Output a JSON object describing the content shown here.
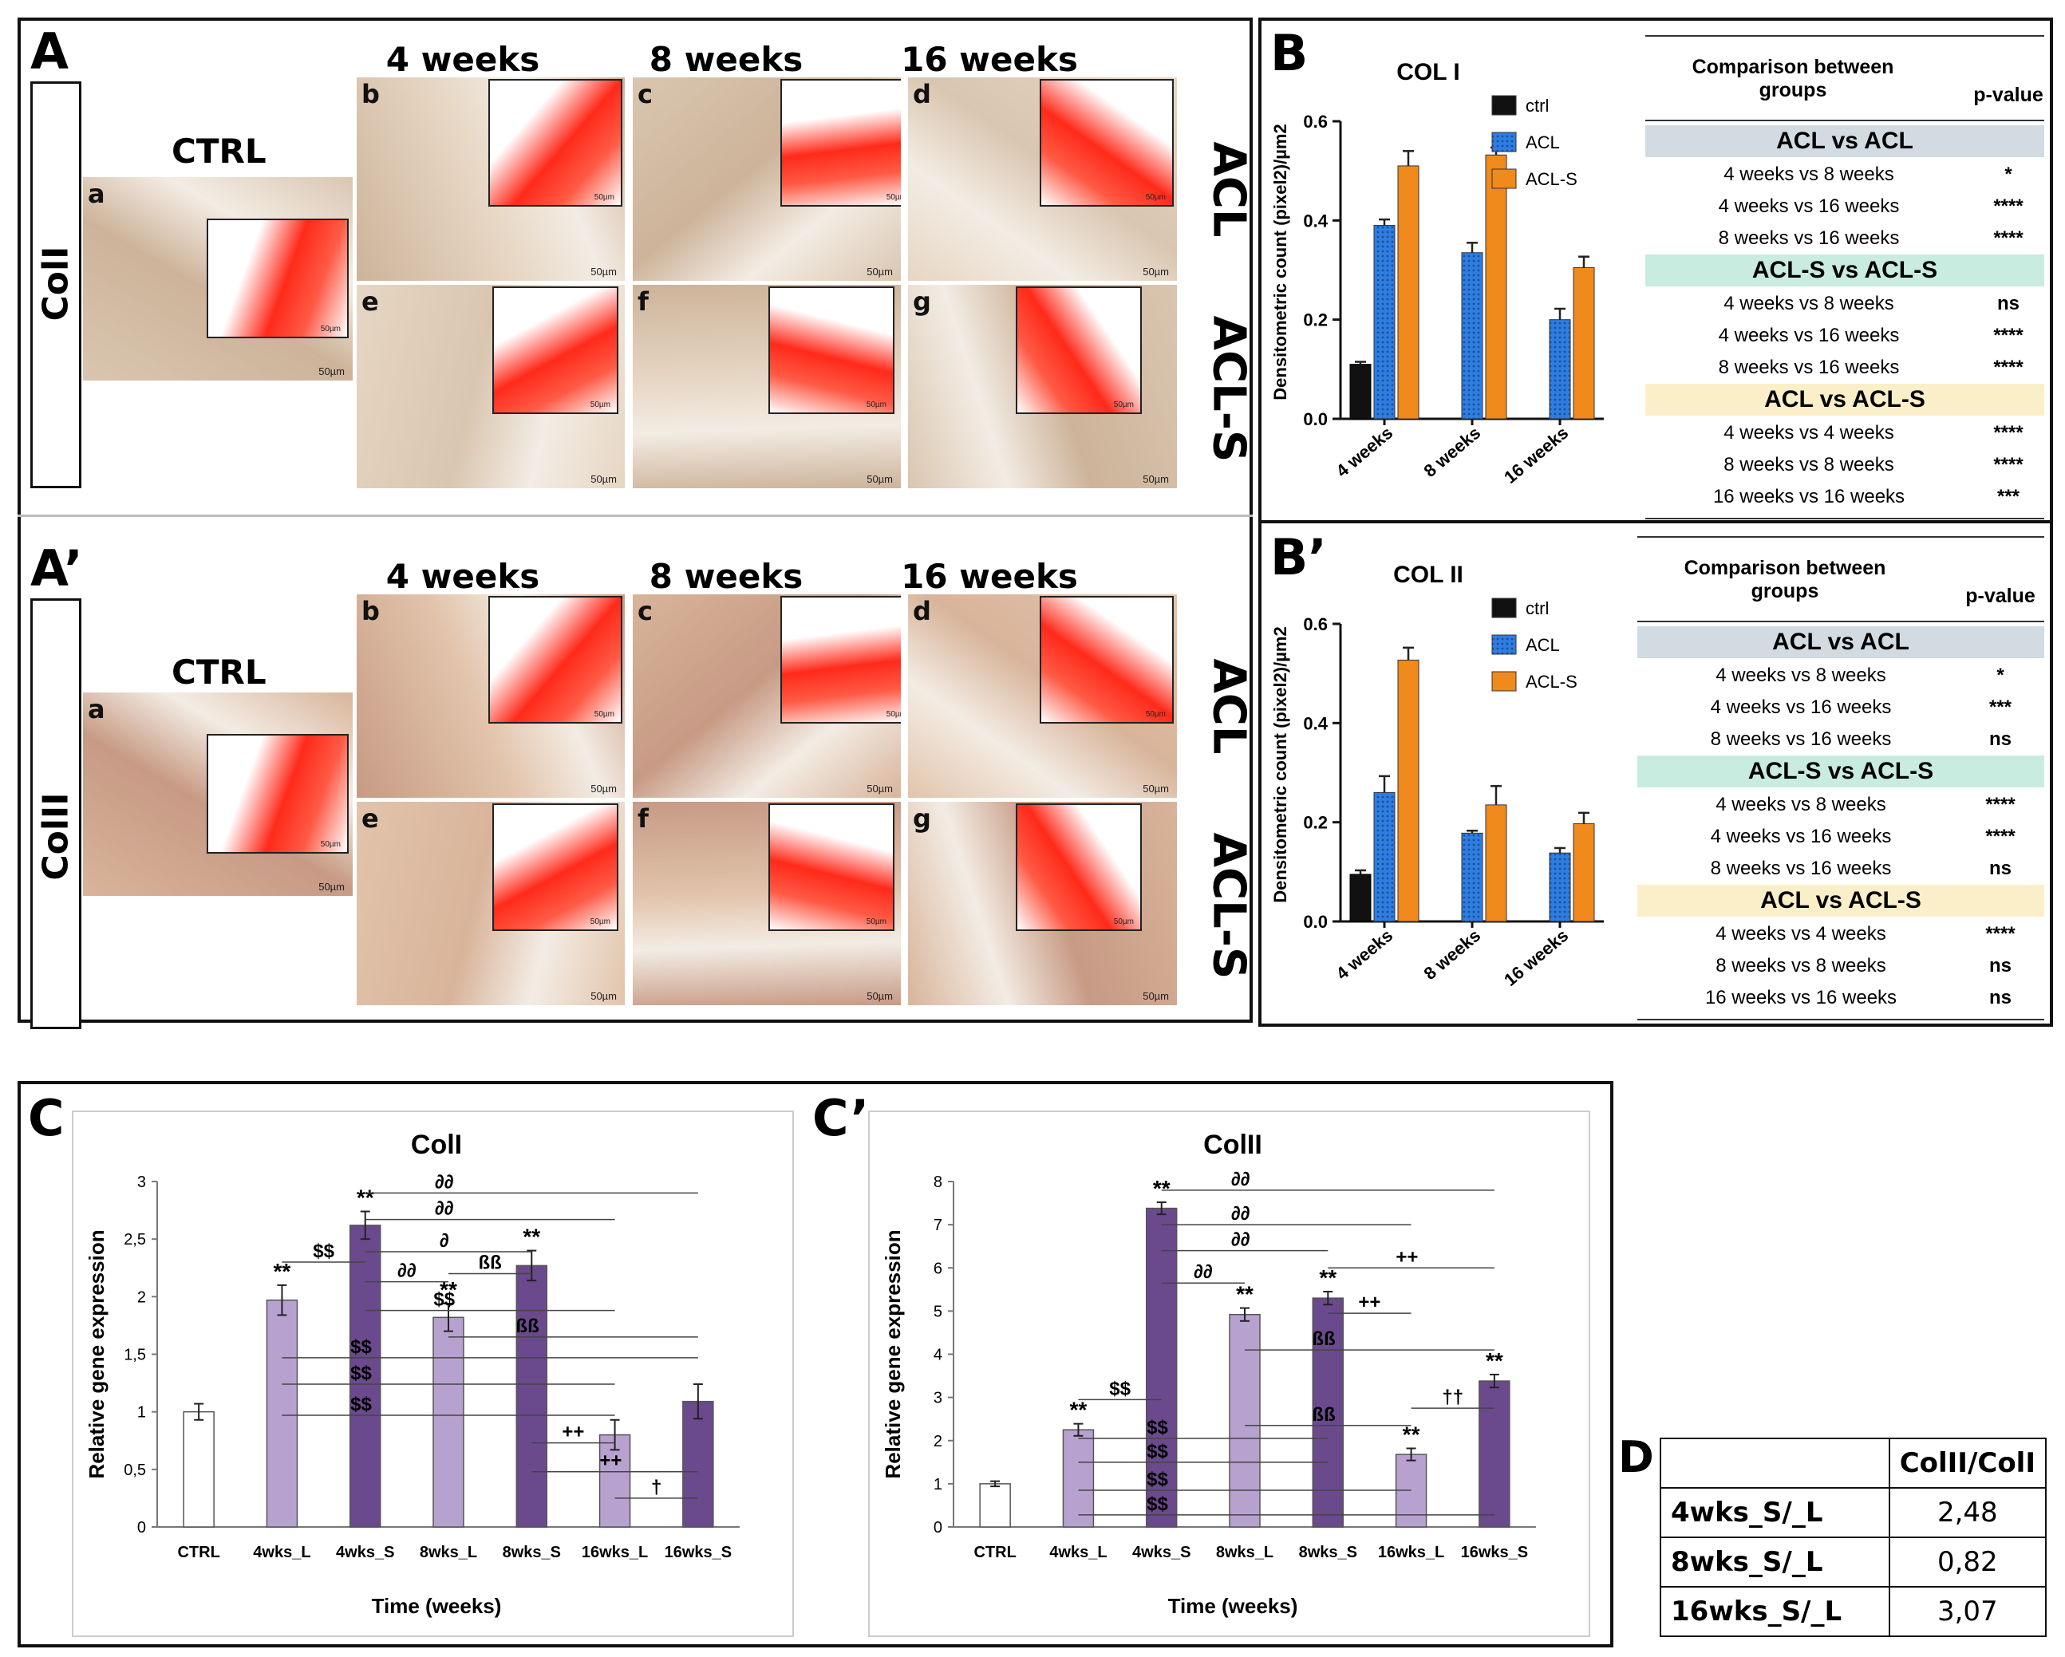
{
  "panelA": {
    "letter": "A",
    "row_label": "ColI",
    "ctrl_label": "CTRL",
    "weeks": [
      "4 weeks",
      "8 weeks",
      "16 weeks"
    ],
    "right_labels": [
      "ACL",
      "ACL-S"
    ],
    "image_letters": [
      "a",
      "b",
      "c",
      "d",
      "e",
      "f",
      "g"
    ],
    "scale_bar": "50µm"
  },
  "panelA2": {
    "letter": "A’",
    "row_label": "ColII",
    "ctrl_label": "CTRL",
    "weeks": [
      "4 weeks",
      "8 weeks",
      "16 weeks"
    ],
    "right_labels": [
      "ACL",
      "ACL-S"
    ],
    "image_letters": [
      "a",
      "b",
      "c",
      "d",
      "e",
      "f",
      "g"
    ],
    "scale_bar": "50µm"
  },
  "panelB": {
    "letter": "B",
    "table": {
      "header_comparison": "Comparison between groups",
      "header_pvalue": "p-value",
      "groups": [
        {
          "title": "ACL vs ACL",
          "color": "#d2dbe2",
          "rows": [
            [
              "4 weeks vs 8 weeks",
              "*"
            ],
            [
              "4 weeks vs 16 weeks",
              "****"
            ],
            [
              "8 weeks vs 16 weeks",
              "****"
            ]
          ]
        },
        {
          "title": "ACL-S vs ACL-S",
          "color": "#c8ecdf",
          "rows": [
            [
              "4 weeks vs 8 weeks",
              "ns"
            ],
            [
              "4 weeks vs 16 weeks",
              "****"
            ],
            [
              "8 weeks vs 16 weeks",
              "****"
            ]
          ]
        },
        {
          "title": "ACL vs ACL-S",
          "color": "#fbefc9",
          "rows": [
            [
              "4 weeks vs 4 weeks",
              "****"
            ],
            [
              "8 weeks vs 8 weeks",
              "****"
            ],
            [
              "16 weeks vs 16 weeks",
              "***"
            ]
          ]
        }
      ]
    }
  },
  "panelB2": {
    "letter": "B’",
    "table": {
      "header_comparison": "Comparison between groups",
      "header_pvalue": "p-value",
      "groups": [
        {
          "title": "ACL vs ACL",
          "color": "#d2dbe2",
          "rows": [
            [
              "4 weeks vs 8 weeks",
              "*"
            ],
            [
              "4 weeks vs 16 weeks",
              "***"
            ],
            [
              "8 weeks vs 16 weeks",
              "ns"
            ]
          ]
        },
        {
          "title": "ACL-S vs ACL-S",
          "color": "#c8ecdf",
          "rows": [
            [
              "4 weeks vs 8 weeks",
              "****"
            ],
            [
              "4 weeks vs 16 weeks",
              "****"
            ],
            [
              "8 weeks vs 16 weeks",
              "ns"
            ]
          ]
        },
        {
          "title": "ACL vs ACL-S",
          "color": "#fbefc9",
          "rows": [
            [
              "4 weeks vs 4 weeks",
              "****"
            ],
            [
              "8 weeks vs 8 weeks",
              "ns"
            ],
            [
              "16 weeks vs 16 weeks",
              "ns"
            ]
          ]
        }
      ]
    }
  },
  "panelC": {
    "letter": "C"
  },
  "panelC2": {
    "letter": "C’"
  },
  "panelD": {
    "letter": "D",
    "header": "ColII/ColI",
    "rows": [
      [
        "4wks_S/_L",
        "2,48"
      ],
      [
        "8wks_S/_L",
        "0,82"
      ],
      [
        "16wks_S/_L",
        "3,07"
      ]
    ]
  },
  "chart_data": [
    {
      "id": "B",
      "type": "bar",
      "title": "COL I",
      "ylabel": "Densitometric count (pixel2)/µm2",
      "categories": [
        "4 weeks",
        "8 weeks",
        "16 weeks"
      ],
      "ylim": [
        0,
        0.6
      ],
      "yticks": [
        "0.0",
        "0.2",
        "0.4",
        "0.6"
      ],
      "legend": [
        "ctrl",
        "ACL",
        "ACL-S"
      ],
      "colors": [
        "#111111",
        "#2e7de0",
        "#f08a1c"
      ],
      "series": [
        {
          "name": "ctrl",
          "values": [
            0.11,
            null,
            null
          ],
          "errors": [
            0.005,
            0,
            0
          ]
        },
        {
          "name": "ACL",
          "values": [
            0.39,
            0.335,
            0.2
          ],
          "errors": [
            0.012,
            0.02,
            0.022
          ]
        },
        {
          "name": "ACL-S",
          "values": [
            0.51,
            0.532,
            0.305
          ],
          "errors": [
            0.03,
            0.015,
            0.022
          ]
        }
      ]
    },
    {
      "id": "B2",
      "type": "bar",
      "title": "COL II",
      "ylabel": "Densitometric count (pixel2)/µm2",
      "categories": [
        "4 weeks",
        "8 weeks",
        "16 weeks"
      ],
      "ylim": [
        0,
        0.6
      ],
      "yticks": [
        "0.0",
        "0.2",
        "0.4",
        "0.6"
      ],
      "legend": [
        "ctrl",
        "ACL",
        "ACL-S"
      ],
      "colors": [
        "#111111",
        "#2e7de0",
        "#f08a1c"
      ],
      "series": [
        {
          "name": "ctrl",
          "values": [
            0.095,
            null,
            null
          ],
          "errors": [
            0.008,
            0,
            0
          ]
        },
        {
          "name": "ACL",
          "values": [
            0.26,
            0.178,
            0.138
          ],
          "errors": [
            0.033,
            0.005,
            0.01
          ]
        },
        {
          "name": "ACL-S",
          "values": [
            0.527,
            0.235,
            0.197
          ],
          "errors": [
            0.025,
            0.038,
            0.022
          ]
        }
      ]
    },
    {
      "id": "C",
      "type": "bar",
      "title": "ColI",
      "xlabel": "Time (weeks)",
      "ylabel": "Relative gene expression",
      "categories": [
        "CTRL",
        "4wks_L",
        "4wks_S",
        "8wks_L",
        "8wks_S",
        "16wks_L",
        "16wks_S"
      ],
      "ylim": [
        0,
        3
      ],
      "yticks": [
        "0",
        "0,5",
        "1",
        "1,5",
        "2",
        "2,5",
        "3"
      ],
      "values": [
        1.0,
        1.97,
        2.62,
        1.82,
        2.27,
        0.8,
        1.09
      ],
      "errors": [
        0.07,
        0.13,
        0.12,
        0.12,
        0.13,
        0.13,
        0.15
      ],
      "colors": [
        "#ffffff",
        "#b7a2cf",
        "#6a4a8c",
        "#b7a2cf",
        "#6a4a8c",
        "#b7a2cf",
        "#6a4a8c"
      ],
      "stars": [
        "",
        "**",
        "**",
        "**",
        "**",
        "",
        ""
      ],
      "annotations": [
        {
          "label": "∂∂",
          "from": 2,
          "to": 6,
          "y": 2.9
        },
        {
          "label": "∂∂",
          "from": 2,
          "to": 5,
          "y": 2.67
        },
        {
          "label": "$$",
          "from": 1,
          "to": 2,
          "y": 2.3
        },
        {
          "label": "∂",
          "from": 2,
          "to": 4,
          "y": 2.39
        },
        {
          "label": "ßß",
          "from": 3,
          "to": 4,
          "y": 2.2
        },
        {
          "label": "∂∂",
          "from": 2,
          "to": 3,
          "y": 2.13
        },
        {
          "label": "$$",
          "from": 2,
          "to": 5,
          "y": 1.88
        },
        {
          "label": "ßß",
          "from": 3,
          "to": 6,
          "y": 1.65
        },
        {
          "label": "$$",
          "from": 1,
          "to": 6,
          "y": 1.47
        },
        {
          "label": "$$",
          "from": 1,
          "to": 5,
          "y": 1.24
        },
        {
          "label": "$$",
          "from": 1,
          "to": 5,
          "y": 0.97
        },
        {
          "label": "++",
          "from": 4,
          "to": 5,
          "y": 0.73
        },
        {
          "label": "++",
          "from": 4,
          "to": 6,
          "y": 0.48
        },
        {
          "label": "†",
          "from": 5,
          "to": 6,
          "y": 0.25
        }
      ]
    },
    {
      "id": "C2",
      "type": "bar",
      "title": "ColII",
      "xlabel": "Time (weeks)",
      "ylabel": "Relative gene expression",
      "categories": [
        "CTRL",
        "4wks_L",
        "4wks_S",
        "8wks_L",
        "8wks_S",
        "16wks_L",
        "16wks_S"
      ],
      "ylim": [
        0,
        8
      ],
      "yticks": [
        "0",
        "1",
        "2",
        "3",
        "4",
        "5",
        "6",
        "7",
        "8"
      ],
      "values": [
        1.0,
        2.25,
        7.38,
        4.92,
        5.3,
        1.68,
        3.38
      ],
      "errors": [
        0.06,
        0.14,
        0.14,
        0.15,
        0.15,
        0.14,
        0.15
      ],
      "colors": [
        "#ffffff",
        "#b7a2cf",
        "#6a4a8c",
        "#b7a2cf",
        "#6a4a8c",
        "#b7a2cf",
        "#6a4a8c"
      ],
      "stars": [
        "",
        "**",
        "**",
        "**",
        "**",
        "**",
        "**"
      ],
      "annotations": [
        {
          "label": "∂∂",
          "from": 2,
          "to": 6,
          "y": 7.8
        },
        {
          "label": "∂∂",
          "from": 2,
          "to": 5,
          "y": 7.0
        },
        {
          "label": "∂∂",
          "from": 2,
          "to": 4,
          "y": 6.4
        },
        {
          "label": "++",
          "from": 4,
          "to": 6,
          "y": 6.0
        },
        {
          "label": "∂∂",
          "from": 2,
          "to": 3,
          "y": 5.65
        },
        {
          "label": "++",
          "from": 4,
          "to": 5,
          "y": 4.95
        },
        {
          "label": "ßß",
          "from": 3,
          "to": 6,
          "y": 4.1
        },
        {
          "label": "$$",
          "from": 1,
          "to": 2,
          "y": 2.95
        },
        {
          "label": "††",
          "from": 5,
          "to": 6,
          "y": 2.75
        },
        {
          "label": "ßß",
          "from": 3,
          "to": 5,
          "y": 2.35
        },
        {
          "label": "$$",
          "from": 1,
          "to": 4,
          "y": 2.05
        },
        {
          "label": "$$",
          "from": 1,
          "to": 4,
          "y": 1.5
        },
        {
          "label": "$$",
          "from": 1,
          "to": 5,
          "y": 0.85
        },
        {
          "label": "$$",
          "from": 1,
          "to": 6,
          "y": 0.28
        }
      ]
    }
  ]
}
